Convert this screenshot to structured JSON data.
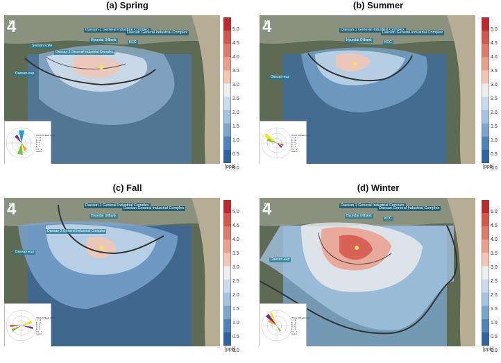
{
  "panels": [
    {
      "id": "spring",
      "title": "(a) Spring"
    },
    {
      "id": "summer",
      "title": "(b) Summer"
    },
    {
      "id": "fall",
      "title": "(c) Fall"
    },
    {
      "id": "winter",
      "title": "(d) Winter"
    }
  ],
  "map_labels": {
    "complex1": "Daesan 1 General Industrial Complex",
    "complex_gen": "Daesan General Industrial Complex",
    "complex2": "Daesan 2 General Industrial Complex",
    "complex3": "Daesan 3 General Industrial Complex",
    "hyundai": "Hyundai Oilbank",
    "kcc": "KCC",
    "seosan": "Seosan Lotte",
    "site": "Daesan-eup"
  },
  "north_label": "N",
  "colorbar": {
    "ticks": [
      "5.0",
      "4.5",
      "4.0",
      "3.5",
      "3.0",
      "2.5",
      "2.0",
      "1.5",
      "1.0",
      "0.5",
      "0.0"
    ],
    "unit": "[ppb]",
    "colors": [
      "#c1272d",
      "#d6564b",
      "#e07a6a",
      "#eba08e",
      "#f4c6b3",
      "#eeeeee",
      "#c9dced",
      "#a3c3e0",
      "#7aa6cf",
      "#4d84bc",
      "#2c64a5"
    ]
  },
  "wind_rose": {
    "title": "WIND SPEED (m/s)",
    "bins": [
      ">= 11",
      "8 - 11",
      "5 - 8",
      "3 - 5",
      "2 - 3",
      "0.5 - 2",
      "Calms"
    ],
    "bin_colors": [
      "#7b2a8c",
      "#e8441f",
      "#f5a623",
      "#f3e80c",
      "#7dc142",
      "#1e9bd7",
      "#ffffff"
    ]
  },
  "contours": {
    "spring": [
      "1.5",
      "2.5"
    ],
    "summer": [
      "1.5",
      "2.5"
    ],
    "fall": [
      "2.5",
      "3.0"
    ],
    "winter": [
      "1.5",
      "3.0",
      "3.5"
    ]
  }
}
